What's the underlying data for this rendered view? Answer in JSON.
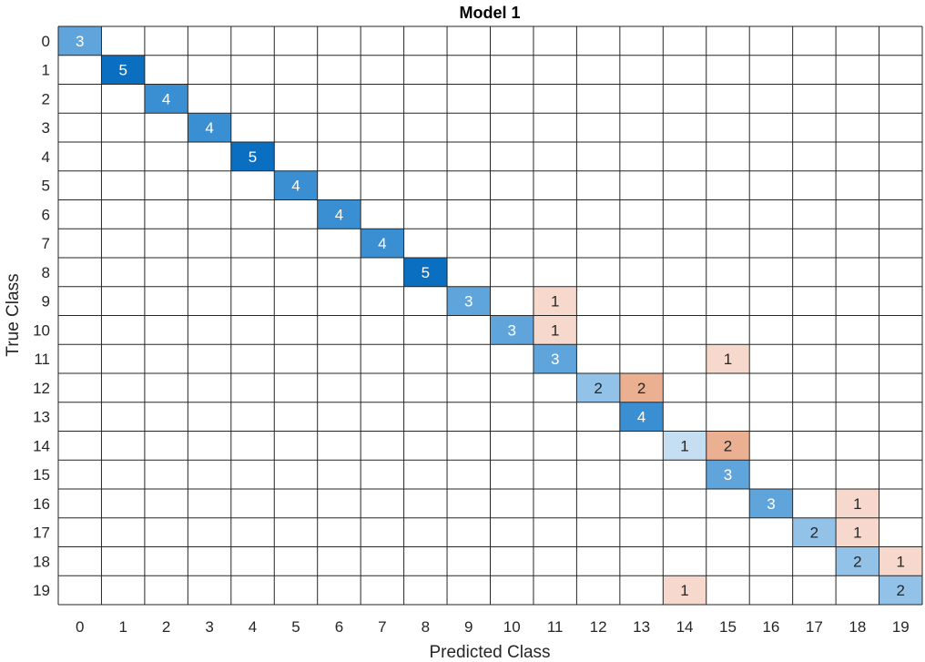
{
  "chart_data": {
    "type": "heatmap",
    "title": "Model 1",
    "xlabel": "Predicted Class",
    "ylabel": "True Class",
    "x_categories": [
      "0",
      "1",
      "2",
      "3",
      "4",
      "5",
      "6",
      "7",
      "8",
      "9",
      "10",
      "11",
      "12",
      "13",
      "14",
      "15",
      "16",
      "17",
      "18",
      "19"
    ],
    "y_categories": [
      "0",
      "1",
      "2",
      "3",
      "4",
      "5",
      "6",
      "7",
      "8",
      "9",
      "10",
      "11",
      "12",
      "13",
      "14",
      "15",
      "16",
      "17",
      "18",
      "19"
    ],
    "cells": [
      {
        "true": 0,
        "pred": 0,
        "value": 3
      },
      {
        "true": 1,
        "pred": 1,
        "value": 5
      },
      {
        "true": 2,
        "pred": 2,
        "value": 4
      },
      {
        "true": 3,
        "pred": 3,
        "value": 4
      },
      {
        "true": 4,
        "pred": 4,
        "value": 5
      },
      {
        "true": 5,
        "pred": 5,
        "value": 4
      },
      {
        "true": 6,
        "pred": 6,
        "value": 4
      },
      {
        "true": 7,
        "pred": 7,
        "value": 4
      },
      {
        "true": 8,
        "pred": 8,
        "value": 5
      },
      {
        "true": 9,
        "pred": 9,
        "value": 3
      },
      {
        "true": 9,
        "pred": 11,
        "value": 1
      },
      {
        "true": 10,
        "pred": 10,
        "value": 3
      },
      {
        "true": 10,
        "pred": 11,
        "value": 1
      },
      {
        "true": 11,
        "pred": 11,
        "value": 3
      },
      {
        "true": 11,
        "pred": 15,
        "value": 1
      },
      {
        "true": 12,
        "pred": 12,
        "value": 2
      },
      {
        "true": 12,
        "pred": 13,
        "value": 2
      },
      {
        "true": 13,
        "pred": 13,
        "value": 4
      },
      {
        "true": 14,
        "pred": 14,
        "value": 1
      },
      {
        "true": 14,
        "pred": 15,
        "value": 2
      },
      {
        "true": 15,
        "pred": 15,
        "value": 3
      },
      {
        "true": 16,
        "pred": 16,
        "value": 3
      },
      {
        "true": 16,
        "pred": 18,
        "value": 1
      },
      {
        "true": 17,
        "pred": 17,
        "value": 2
      },
      {
        "true": 17,
        "pred": 18,
        "value": 1
      },
      {
        "true": 18,
        "pred": 18,
        "value": 2
      },
      {
        "true": 18,
        "pred": 19,
        "value": 1
      },
      {
        "true": 19,
        "pred": 14,
        "value": 1
      },
      {
        "true": 19,
        "pred": 19,
        "value": 2
      }
    ],
    "colors": {
      "correct": {
        "1": "#c6def2",
        "2": "#93c2e8",
        "3": "#5fa5dc",
        "4": "#3a8fd2",
        "5": "#0a6fc1"
      },
      "incorrect": {
        "1": "#f6d9cc",
        "2": "#ebaf91"
      },
      "text_dark": "#262626",
      "text_light": "#ffffff",
      "grid": "#262626"
    }
  }
}
